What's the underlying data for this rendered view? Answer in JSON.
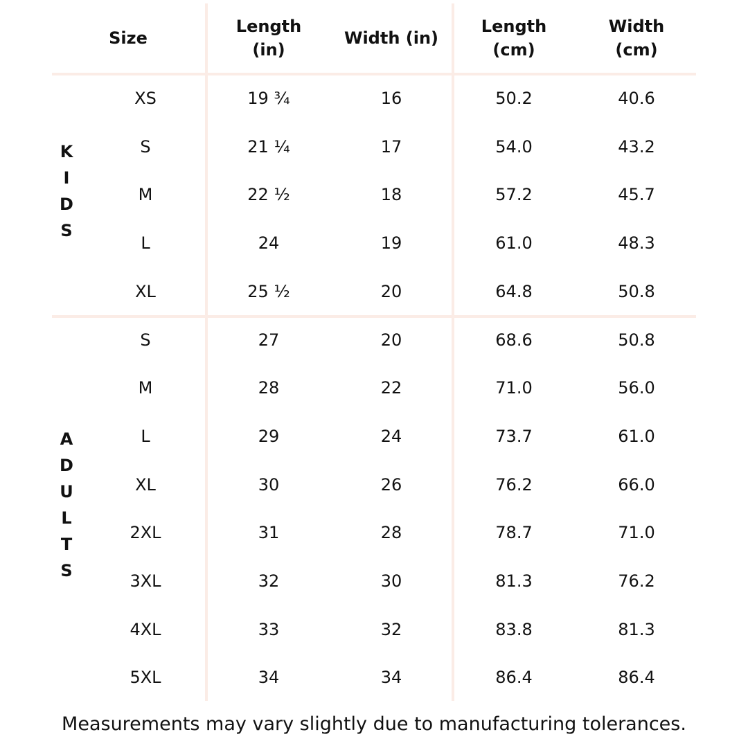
{
  "table": {
    "headers": [
      [
        "Size"
      ],
      [
        "Length",
        "(in)"
      ],
      [
        "Width (in)"
      ],
      [
        "Length",
        "(cm)"
      ],
      [
        "Width",
        "(cm)"
      ]
    ],
    "groups": [
      {
        "label": "KIDS",
        "rows": [
          [
            "XS",
            "19 ¾",
            "16",
            "50.2",
            "40.6"
          ],
          [
            "S",
            "21 ¼",
            "17",
            "54.0",
            "43.2"
          ],
          [
            "M",
            "22 ½",
            "18",
            "57.2",
            "45.7"
          ],
          [
            "L",
            "24",
            "19",
            "61.0",
            "48.3"
          ],
          [
            "XL",
            "25 ½",
            "20",
            "64.8",
            "50.8"
          ]
        ]
      },
      {
        "label": "ADULTS",
        "rows": [
          [
            "S",
            "27",
            "20",
            "68.6",
            "50.8"
          ],
          [
            "M",
            "28",
            "22",
            "71.0",
            "56.0"
          ],
          [
            "L",
            "29",
            "24",
            "73.7",
            "61.0"
          ],
          [
            "XL",
            "30",
            "26",
            "76.2",
            "66.0"
          ],
          [
            "2XL",
            "31",
            "28",
            "78.7",
            "71.0"
          ],
          [
            "3XL",
            "32",
            "30",
            "81.3",
            "76.2"
          ],
          [
            "4XL",
            "33",
            "32",
            "83.8",
            "81.3"
          ],
          [
            "5XL",
            "34",
            "34",
            "86.4",
            "86.4"
          ]
        ]
      }
    ]
  },
  "footer": {
    "note": "Measurements may vary slightly due to manufacturing tolerances."
  }
}
